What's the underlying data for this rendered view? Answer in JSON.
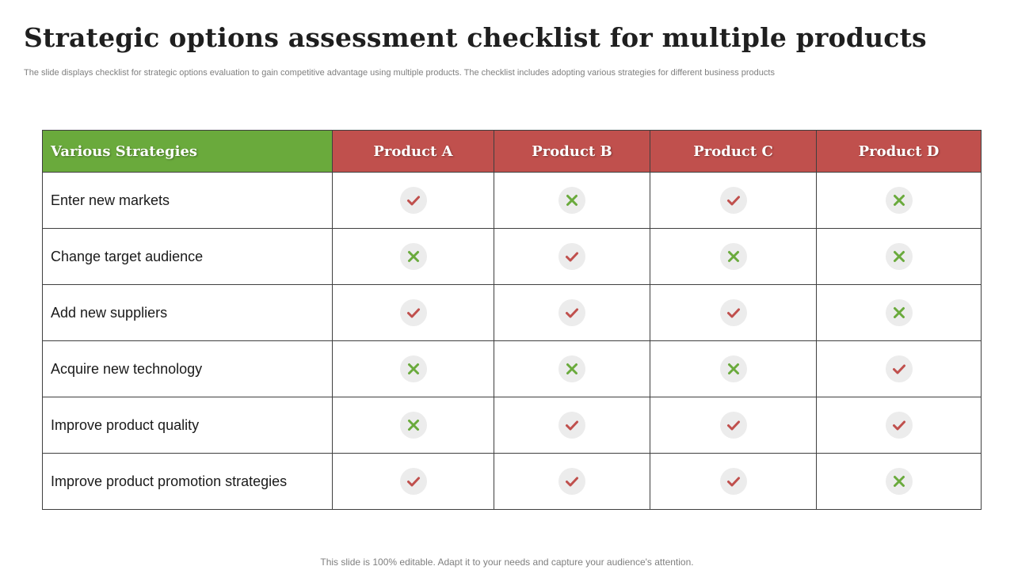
{
  "slide": {
    "title": "Strategic options assessment checklist for multiple products",
    "subtitle": "The slide displays checklist for strategic options evaluation to gain competitive advantage using multiple products. The checklist includes adopting various strategies for different business products",
    "footer": "This slide is 100% editable. Adapt it to your needs and capture your audience's attention."
  },
  "colors": {
    "header_green": "#6aaa3c",
    "header_red": "#c0504d",
    "check": "#c0504d",
    "cross": "#6aaa3c",
    "mark_bg": "#ececec"
  },
  "table": {
    "headers": [
      "Various Strategies",
      "Product A",
      "Product B",
      "Product C",
      "Product D"
    ],
    "rows": [
      {
        "strategy": "Enter new markets",
        "marks": [
          "check",
          "cross",
          "check",
          "cross"
        ]
      },
      {
        "strategy": "Change target audience",
        "marks": [
          "cross",
          "check",
          "cross",
          "cross"
        ]
      },
      {
        "strategy": "Add new suppliers",
        "marks": [
          "check",
          "check",
          "check",
          "cross"
        ]
      },
      {
        "strategy": "Acquire new technology",
        "marks": [
          "cross",
          "cross",
          "cross",
          "check"
        ]
      },
      {
        "strategy": "Improve product quality",
        "marks": [
          "cross",
          "check",
          "check",
          "check"
        ]
      },
      {
        "strategy": "Improve product promotion strategies",
        "marks": [
          "check",
          "check",
          "check",
          "cross"
        ]
      }
    ]
  }
}
